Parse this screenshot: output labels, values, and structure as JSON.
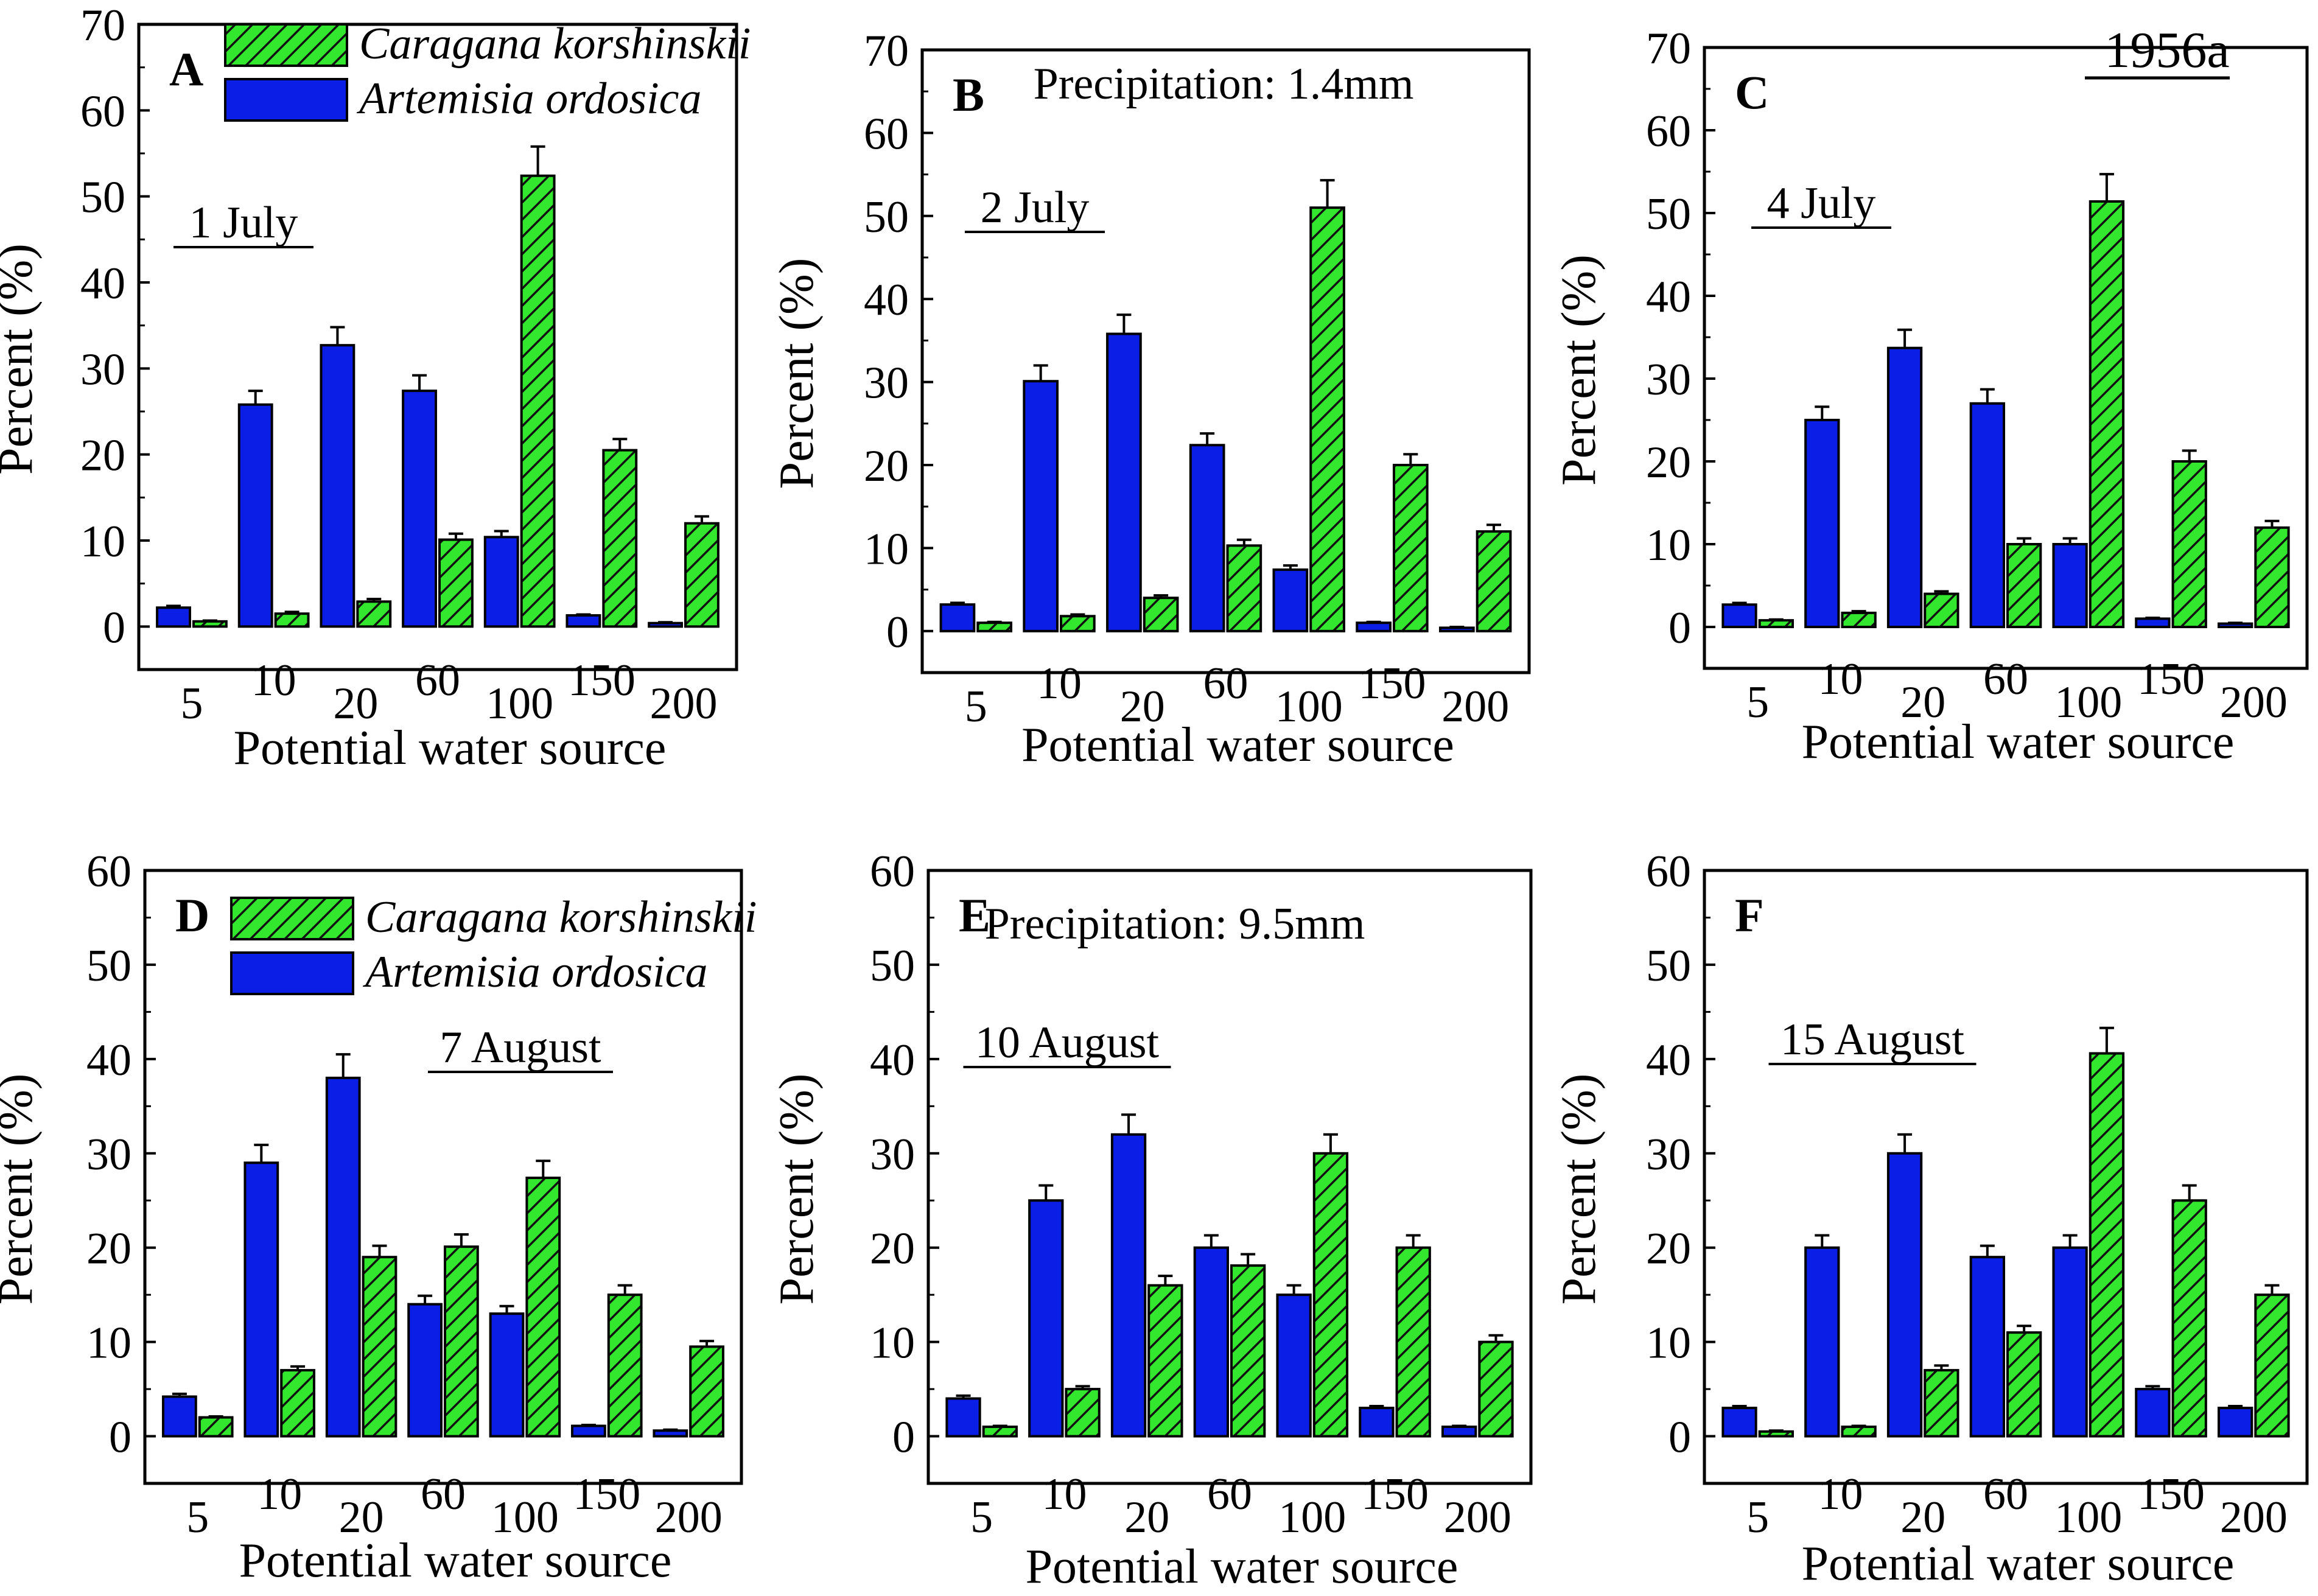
{
  "figure_label": "1956a",
  "colors": {
    "artemisia": "#0a1ee6",
    "caragana": "#33e62e",
    "hatch": "#111111",
    "axis": "#000000"
  },
  "legend": [
    {
      "key": "caragana",
      "label": "Caragana korshinskii",
      "style": "hatched"
    },
    {
      "key": "artemisia",
      "label": "Artemisia ordosica",
      "style": "solid"
    }
  ],
  "chart_data": [
    {
      "panel": "A",
      "type": "bar",
      "date_label": "1 July",
      "xlabel": "Potential water source",
      "ylabel": "Percent (%)",
      "ylim": [
        -5,
        70
      ],
      "yticks": [
        0,
        10,
        20,
        30,
        40,
        50,
        60,
        70
      ],
      "categories": [
        "5",
        "10",
        "20",
        "60",
        "100",
        "150",
        "200"
      ],
      "series": [
        {
          "name": "Artemisia ordosica",
          "key": "artemisia",
          "values": [
            2.2,
            25.8,
            32.7,
            27.4,
            10.4,
            1.3,
            0.4
          ],
          "errors": [
            0.2,
            1.6,
            2.1,
            1.8,
            0.7,
            0.1,
            0.1
          ]
        },
        {
          "name": "Caragana korshinskii",
          "key": "caragana",
          "values": [
            0.6,
            1.5,
            2.9,
            10.1,
            52.4,
            20.5,
            12.0
          ],
          "errors": [
            0.1,
            0.2,
            0.3,
            0.7,
            3.4,
            1.3,
            0.8
          ]
        }
      ],
      "show_legend": true
    },
    {
      "panel": "B",
      "type": "bar",
      "date_label": "2 July",
      "annotation": "Precipitation: 1.4mm",
      "xlabel": "Potential water source",
      "ylabel": "Percent (%)",
      "ylim": [
        -5,
        70
      ],
      "yticks": [
        0,
        10,
        20,
        30,
        40,
        50,
        60,
        70
      ],
      "categories": [
        "5",
        "10",
        "20",
        "60",
        "100",
        "150",
        "200"
      ],
      "series": [
        {
          "name": "Artemisia ordosica",
          "key": "artemisia",
          "values": [
            3.2,
            30.1,
            35.8,
            22.4,
            7.4,
            1.0,
            0.4
          ],
          "errors": [
            0.2,
            1.9,
            2.3,
            1.4,
            0.5,
            0.1,
            0.1
          ]
        },
        {
          "name": "Caragana korshinskii",
          "key": "caragana",
          "values": [
            1.0,
            1.8,
            4.0,
            10.3,
            51.0,
            20.0,
            12.0
          ],
          "errors": [
            0.1,
            0.2,
            0.3,
            0.7,
            3.3,
            1.3,
            0.8
          ]
        }
      ],
      "show_legend": false
    },
    {
      "panel": "C",
      "type": "bar",
      "date_label": "4 July",
      "xlabel": "Potential water source",
      "ylabel": "Percent (%)",
      "ylim": [
        -5,
        70
      ],
      "yticks": [
        0,
        10,
        20,
        30,
        40,
        50,
        60,
        70
      ],
      "categories": [
        "5",
        "10",
        "20",
        "60",
        "100",
        "150",
        "200"
      ],
      "series": [
        {
          "name": "Artemisia ordosica",
          "key": "artemisia",
          "values": [
            2.7,
            25.0,
            33.7,
            27.0,
            10.0,
            1.0,
            0.4
          ],
          "errors": [
            0.2,
            1.6,
            2.2,
            1.7,
            0.7,
            0.1,
            0.1
          ]
        },
        {
          "name": "Caragana korshinskii",
          "key": "caragana",
          "values": [
            0.8,
            1.7,
            4.0,
            10.0,
            51.4,
            20.0,
            12.0
          ],
          "errors": [
            0.1,
            0.2,
            0.3,
            0.7,
            3.3,
            1.3,
            0.8
          ]
        }
      ],
      "show_legend": false
    },
    {
      "panel": "D",
      "type": "bar",
      "date_label": "7 August",
      "xlabel": "Potential water source",
      "ylabel": "Percent (%)",
      "ylim": [
        -5,
        60
      ],
      "yticks": [
        0,
        10,
        20,
        30,
        40,
        50,
        60
      ],
      "categories": [
        "5",
        "10",
        "20",
        "60",
        "100",
        "150",
        "200"
      ],
      "series": [
        {
          "name": "Artemisia ordosica",
          "key": "artemisia",
          "values": [
            4.2,
            29.0,
            38.0,
            14.0,
            13.0,
            1.1,
            0.6
          ],
          "errors": [
            0.3,
            1.9,
            2.5,
            0.9,
            0.8,
            0.1,
            0.1
          ]
        },
        {
          "name": "Caragana korshinskii",
          "key": "caragana",
          "values": [
            2.0,
            7.0,
            19.0,
            20.1,
            27.4,
            15.0,
            9.5
          ],
          "errors": [
            0.1,
            0.4,
            1.2,
            1.3,
            1.8,
            1.0,
            0.6
          ]
        }
      ],
      "show_legend": true
    },
    {
      "panel": "E",
      "type": "bar",
      "date_label": "10 August",
      "annotation": "Precipitation: 9.5mm",
      "xlabel": "Potential water source",
      "ylabel": "Percent (%)",
      "ylim": [
        -5,
        60
      ],
      "yticks": [
        0,
        10,
        20,
        30,
        40,
        50,
        60
      ],
      "categories": [
        "5",
        "10",
        "20",
        "60",
        "100",
        "150",
        "200"
      ],
      "series": [
        {
          "name": "Artemisia ordosica",
          "key": "artemisia",
          "values": [
            4.0,
            25.0,
            32.0,
            20.0,
            15.0,
            3.0,
            1.0
          ],
          "errors": [
            0.3,
            1.6,
            2.1,
            1.3,
            1.0,
            0.2,
            0.1
          ]
        },
        {
          "name": "Caragana korshinskii",
          "key": "caragana",
          "values": [
            1.0,
            5.0,
            16.0,
            18.1,
            30.0,
            20.0,
            10.0
          ],
          "errors": [
            0.1,
            0.3,
            1.0,
            1.2,
            2.0,
            1.3,
            0.7
          ]
        }
      ],
      "show_legend": false
    },
    {
      "panel": "F",
      "type": "bar",
      "date_label": "15 August",
      "xlabel": "Potential water source",
      "ylabel": "Percent (%)",
      "ylim": [
        -5,
        60
      ],
      "yticks": [
        0,
        10,
        20,
        30,
        40,
        50,
        60
      ],
      "categories": [
        "5",
        "10",
        "20",
        "60",
        "100",
        "150",
        "200"
      ],
      "series": [
        {
          "name": "Artemisia ordosica",
          "key": "artemisia",
          "values": [
            3.0,
            20.0,
            30.0,
            19.0,
            20.0,
            5.0,
            3.0
          ],
          "errors": [
            0.2,
            1.3,
            2.0,
            1.2,
            1.3,
            0.3,
            0.2
          ]
        },
        {
          "name": "Caragana korshinskii",
          "key": "caragana",
          "values": [
            0.5,
            1.0,
            7.0,
            11.0,
            40.6,
            25.0,
            15.0
          ],
          "errors": [
            0.1,
            0.1,
            0.5,
            0.7,
            2.7,
            1.6,
            1.0
          ]
        }
      ],
      "show_legend": false
    }
  ]
}
